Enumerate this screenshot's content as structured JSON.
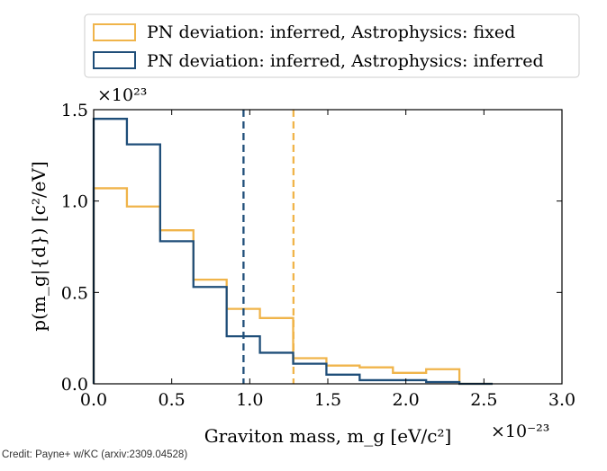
{
  "chart_data": {
    "type": "histogram",
    "title": "",
    "xlabel": "Graviton mass, m_g [eV/c²]",
    "ylabel": "p(m_g|{d}) [c²/eV]",
    "x_scale_label": "×10⁻²³",
    "y_scale_label": "×10²³",
    "xlim": [
      0.0,
      3.0
    ],
    "ylim": [
      0.0,
      1.5
    ],
    "xticks": [
      "0.0",
      "0.5",
      "1.0",
      "1.5",
      "2.0",
      "2.5",
      "3.0"
    ],
    "yticks": [
      "0.0",
      "0.5",
      "1.0",
      "1.5"
    ],
    "bin_edges": [
      0.0,
      0.213,
      0.426,
      0.639,
      0.852,
      1.065,
      1.278,
      1.491,
      1.704,
      1.917,
      2.13,
      2.343,
      2.556
    ],
    "legend_position": "top",
    "series": [
      {
        "name": "PN deviation: inferred, Astrophysics: fixed",
        "color": "#f0b44a",
        "values": [
          1.07,
          0.97,
          0.84,
          0.57,
          0.41,
          0.36,
          0.14,
          0.1,
          0.09,
          0.06,
          0.08,
          0.0
        ],
        "vline_x": 1.28
      },
      {
        "name": "PN deviation: inferred, Astrophysics: inferred",
        "color": "#1f4e79",
        "values": [
          1.45,
          1.31,
          0.78,
          0.53,
          0.26,
          0.17,
          0.11,
          0.05,
          0.02,
          0.02,
          0.01,
          0.0
        ],
        "vline_x": 0.96
      }
    ]
  },
  "credit": "Credit: Payne+ w/KC (arxiv:2309.04528)"
}
